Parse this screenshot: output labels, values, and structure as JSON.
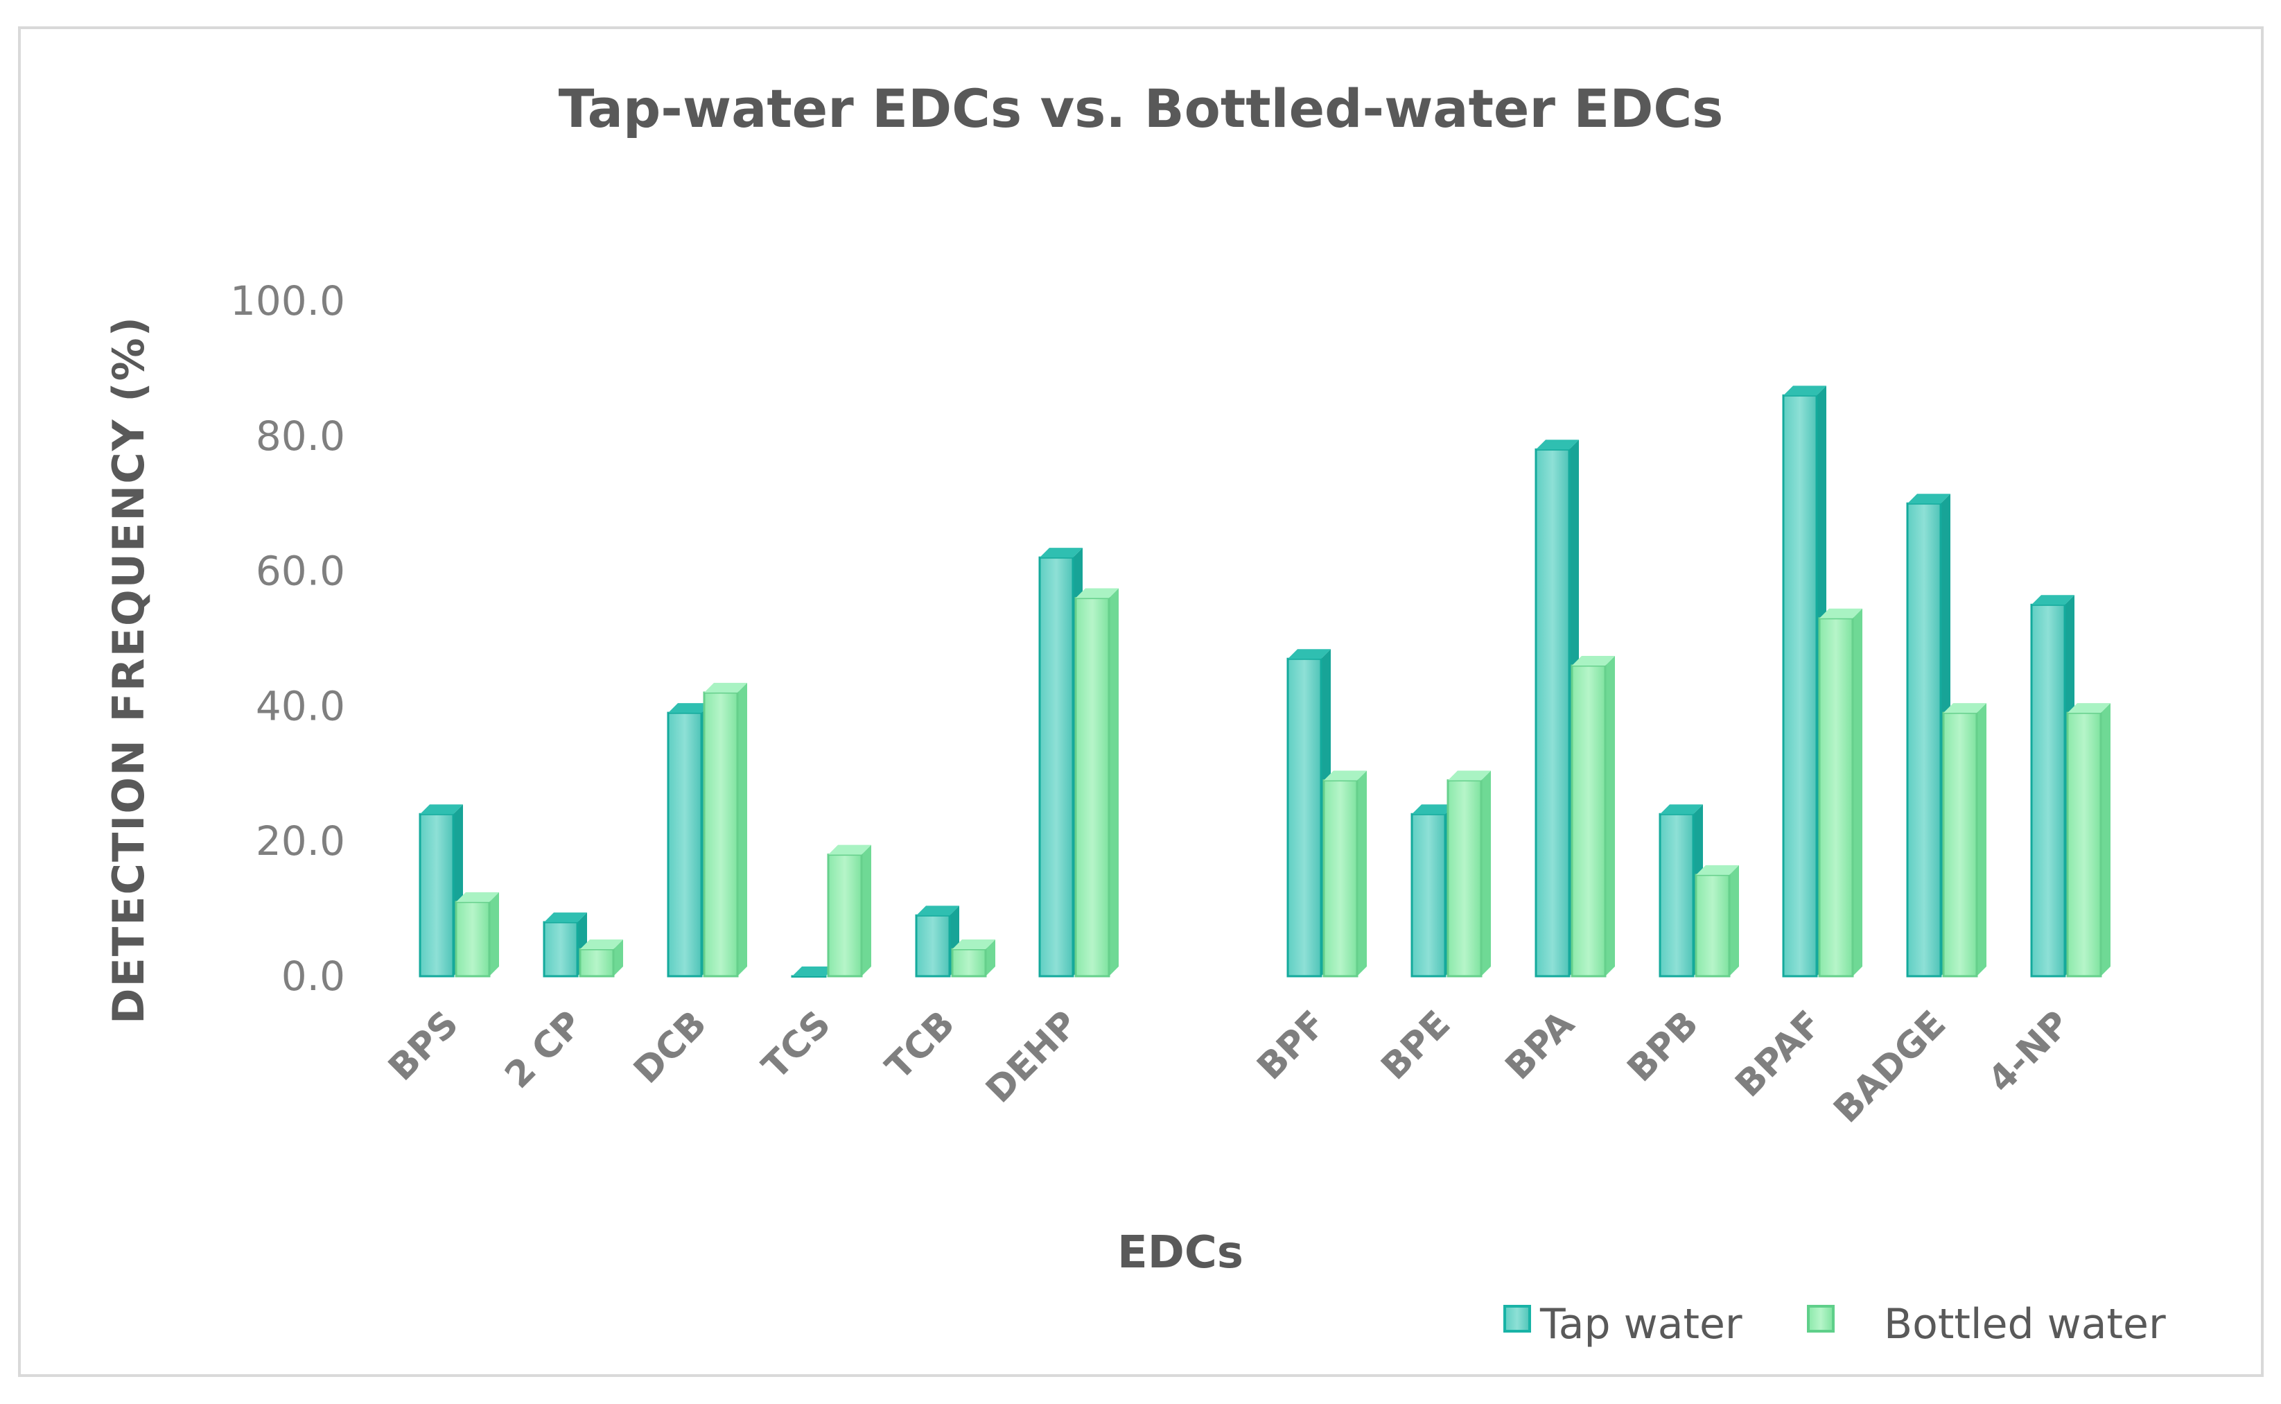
{
  "chart_data": {
    "type": "bar",
    "title": "Tap-water EDCs vs. Bottled-water EDCs",
    "xlabel": "EDCs",
    "ylabel": "DETECTION FREQUENCY (%)",
    "ylim": [
      0,
      100
    ],
    "yticks": [
      "0.0",
      "20.0",
      "40.0",
      "60.0",
      "80.0",
      "100.0"
    ],
    "grid": false,
    "legend_position": "bottom-right",
    "categories": [
      "BPS",
      "2 CP",
      "DCB",
      "TCS",
      "TCB",
      "DEHP",
      "BPF",
      "BPE",
      "BPA",
      "BPB",
      "BPAF",
      "BADGE",
      "4-NP"
    ],
    "series": [
      {
        "name": "Tap water",
        "color": "#6fd3c8",
        "values": [
          24,
          8,
          39,
          0,
          9,
          62,
          47,
          24,
          78,
          24,
          86,
          70,
          55
        ]
      },
      {
        "name": "Bottled water",
        "color": "#9df0b8",
        "values": [
          11,
          4,
          42,
          18,
          4,
          56,
          29,
          29,
          46,
          15,
          53,
          39,
          39
        ]
      }
    ]
  }
}
